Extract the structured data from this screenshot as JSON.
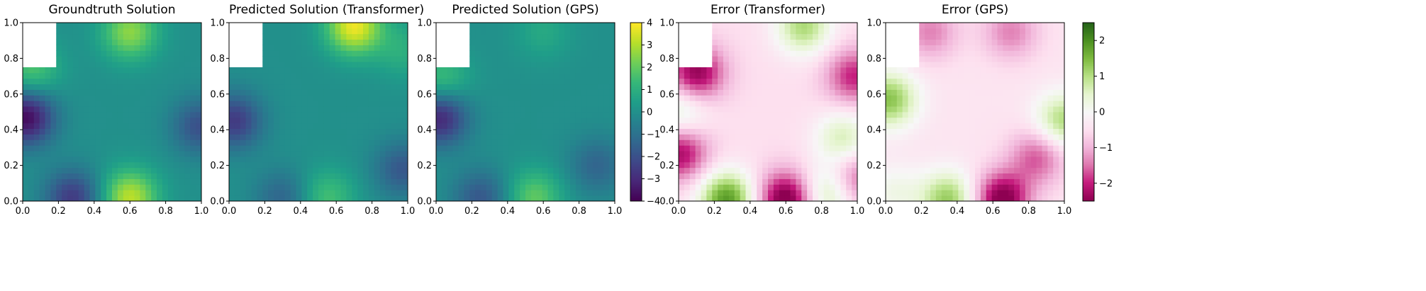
{
  "figure": {
    "panel_titles": [
      "Groundtruth Solution",
      "Predicted Solution (Transformer)",
      "Predicted Solution (GPS)",
      "Error (Transformer)",
      "Error (GPS)"
    ]
  },
  "chart_data": [
    {
      "type": "heatmap",
      "title": "Groundtruth Solution",
      "colormap": "viridis",
      "xlim": [
        0,
        1
      ],
      "ylim": [
        0,
        1
      ],
      "xticks": [
        "0.0",
        "0.2",
        "0.4",
        "0.6",
        "0.8",
        "1.0"
      ],
      "yticks": [
        "0.0",
        "0.2",
        "0.4",
        "0.6",
        "0.8",
        "1.0"
      ],
      "grid": false,
      "masked_region": {
        "x": [
          0,
          0.1875
        ],
        "y": [
          0.75,
          1.0
        ]
      },
      "vlim": [
        -4,
        4
      ],
      "features": [
        {
          "x": 0.6,
          "y": 0.95,
          "value": 2.6
        },
        {
          "x": 0.6,
          "y": 0.02,
          "value": 3.2
        },
        {
          "x": 0.02,
          "y": 0.47,
          "value": -3.8
        },
        {
          "x": 0.28,
          "y": 0.02,
          "value": -2.6
        },
        {
          "x": 0.99,
          "y": 0.42,
          "value": -2.0
        },
        {
          "x": 0.05,
          "y": 0.74,
          "value": 1.8
        }
      ]
    },
    {
      "type": "heatmap",
      "title": "Predicted Solution (Transformer)",
      "colormap": "viridis",
      "xlim": [
        0,
        1
      ],
      "ylim": [
        0,
        1
      ],
      "xticks": [
        "0.0",
        "0.2",
        "0.4",
        "0.6",
        "0.8",
        "1.0"
      ],
      "yticks": [
        "0.0",
        "0.2",
        "0.4",
        "0.6",
        "0.8",
        "1.0"
      ],
      "grid": false,
      "masked_region": {
        "x": [
          0,
          0.1875
        ],
        "y": [
          0.75,
          1.0
        ]
      },
      "vlim": [
        -4,
        4
      ],
      "features": [
        {
          "x": 0.7,
          "y": 0.98,
          "value": 3.8
        },
        {
          "x": 0.55,
          "y": 0.02,
          "value": 1.6
        },
        {
          "x": 0.03,
          "y": 0.45,
          "value": -2.6
        },
        {
          "x": 0.3,
          "y": 0.02,
          "value": -1.4
        },
        {
          "x": 0.97,
          "y": 0.18,
          "value": -1.8
        },
        {
          "x": 0.97,
          "y": 0.85,
          "value": 1.0
        }
      ]
    },
    {
      "type": "heatmap",
      "title": "Predicted Solution (GPS)",
      "colormap": "viridis",
      "xlim": [
        0,
        1
      ],
      "ylim": [
        0,
        1
      ],
      "xticks": [
        "0.0",
        "0.2",
        "0.4",
        "0.6",
        "0.8",
        "1.0"
      ],
      "yticks": [
        "0.0",
        "0.2",
        "0.4",
        "0.6",
        "0.8",
        "1.0"
      ],
      "grid": false,
      "masked_region": {
        "x": [
          0,
          0.1875
        ],
        "y": [
          0.75,
          1.0
        ]
      },
      "vlim": [
        -4,
        4
      ],
      "features": [
        {
          "x": 0.55,
          "y": 0.02,
          "value": 2.0
        },
        {
          "x": 0.02,
          "y": 0.47,
          "value": -3.2
        },
        {
          "x": 0.25,
          "y": 0.02,
          "value": -1.8
        },
        {
          "x": 0.9,
          "y": 0.2,
          "value": -1.4
        },
        {
          "x": 0.6,
          "y": 0.95,
          "value": 0.8
        },
        {
          "x": 0.03,
          "y": 0.68,
          "value": 1.6
        }
      ]
    },
    {
      "type": "heatmap",
      "title": "Error (Transformer)",
      "colormap": "PiYG",
      "xlim": [
        0,
        1
      ],
      "ylim": [
        0,
        1
      ],
      "xticks": [
        "0.0",
        "0.2",
        "0.4",
        "0.6",
        "0.8",
        "1.0"
      ],
      "yticks": [
        "0.0",
        "0.2",
        "0.4",
        "0.6",
        "0.8",
        "1.0"
      ],
      "grid": false,
      "masked_region": {
        "x": [
          0,
          0.1875
        ],
        "y": [
          0.75,
          1.0
        ]
      },
      "vlim": [
        -2.5,
        2.5
      ],
      "base": -0.5,
      "features": [
        {
          "x": 0.27,
          "y": 0.01,
          "value": 2.4
        },
        {
          "x": 0.6,
          "y": 0.01,
          "value": -2.3
        },
        {
          "x": 0.1,
          "y": 0.72,
          "value": -2.0
        },
        {
          "x": 0.01,
          "y": 0.27,
          "value": -1.8
        },
        {
          "x": 0.7,
          "y": 0.98,
          "value": 1.6
        },
        {
          "x": 0.92,
          "y": 0.35,
          "value": 1.2
        },
        {
          "x": 0.98,
          "y": 0.12,
          "value": -1.4
        },
        {
          "x": 0.85,
          "y": 0.05,
          "value": 1.5
        },
        {
          "x": 0.01,
          "y": 0.5,
          "value": 1.0
        },
        {
          "x": 0.98,
          "y": 0.7,
          "value": -1.5
        }
      ]
    },
    {
      "type": "heatmap",
      "title": "Error (GPS)",
      "colormap": "PiYG",
      "xlim": [
        0,
        1
      ],
      "ylim": [
        0,
        1
      ],
      "xticks": [
        "0.0",
        "0.2",
        "0.4",
        "0.6",
        "0.8",
        "1.0"
      ],
      "yticks": [
        "0.0",
        "0.2",
        "0.4",
        "0.6",
        "0.8",
        "1.0"
      ],
      "grid": false,
      "masked_region": {
        "x": [
          0,
          0.1875
        ],
        "y": [
          0.75,
          1.0
        ]
      },
      "vlim": [
        -2.5,
        2.5
      ],
      "base": -0.4,
      "features": [
        {
          "x": 0.65,
          "y": 0.01,
          "value": -2.3
        },
        {
          "x": 0.35,
          "y": 0.01,
          "value": 1.7
        },
        {
          "x": 0.02,
          "y": 0.57,
          "value": 1.8
        },
        {
          "x": 0.99,
          "y": 0.45,
          "value": 1.5
        },
        {
          "x": 0.85,
          "y": 0.25,
          "value": -1.3
        },
        {
          "x": 0.25,
          "y": 0.95,
          "value": -1.0
        },
        {
          "x": 0.7,
          "y": 0.95,
          "value": -1.0
        },
        {
          "x": 0.05,
          "y": 0.05,
          "value": 0.6
        }
      ]
    }
  ],
  "colorbars": [
    {
      "colormap": "viridis",
      "range": [
        -4,
        4
      ],
      "ticks": [
        "4",
        "3",
        "2",
        "1",
        "0",
        "−1",
        "−2",
        "−3",
        "−4"
      ]
    },
    {
      "colormap": "PiYG",
      "range": [
        -2.5,
        2.5
      ],
      "ticks": [
        "2",
        "1",
        "0",
        "−1",
        "−2"
      ]
    }
  ],
  "colors": {
    "viridis": [
      "#440154",
      "#482878",
      "#3e4989",
      "#31688e",
      "#26828e",
      "#1f9e89",
      "#35b779",
      "#6ece58",
      "#b5de2b",
      "#fde725"
    ],
    "PiYG": [
      "#8e0152",
      "#c51b7d",
      "#de77ae",
      "#f1b6da",
      "#fde0ef",
      "#f7f7f7",
      "#e6f5d0",
      "#b8e186",
      "#7fbc41",
      "#4d9221",
      "#276419"
    ]
  }
}
